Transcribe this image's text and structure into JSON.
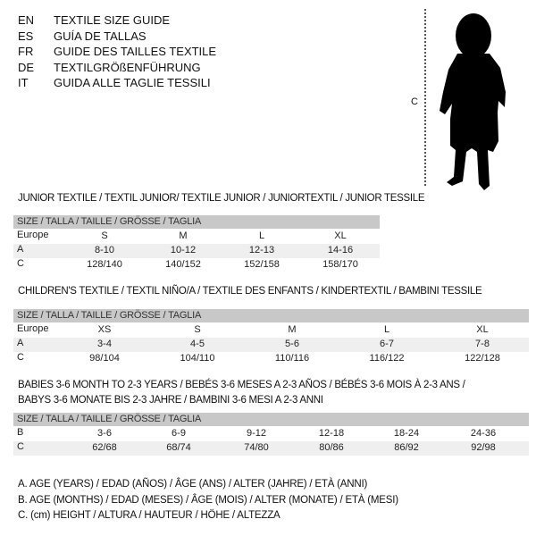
{
  "languages": [
    {
      "code": "EN",
      "title": "TEXTILE SIZE GUIDE"
    },
    {
      "code": "ES",
      "title": "GUÍA DE TALLAS"
    },
    {
      "code": "FR",
      "title": "GUIDE DES TAILLES TEXTILE"
    },
    {
      "code": "DE",
      "title": "TEXTILGRÖßENFÜHRUNG"
    },
    {
      "code": "IT",
      "title": "GUIDA ALLE TAGLIE TESSILI"
    }
  ],
  "figure": {
    "measure_label": "C",
    "icon": "child-silhouette"
  },
  "size_header": "SIZE / TALLA / TAILLE / GRÖSSE / TAGLIA",
  "junior": {
    "title": "JUNIOR TEXTILE / TEXTIL JUNIOR/ TEXTILE JUNIOR / JUNIORTEXTIL / JUNIOR TESSILE",
    "rows": [
      {
        "label": "Europe",
        "values": [
          "S",
          "M",
          "L",
          "XL"
        ]
      },
      {
        "label": "A",
        "values": [
          "8-10",
          "10-12",
          "12-13",
          "14-16"
        ]
      },
      {
        "label": "C",
        "values": [
          "128/140",
          "140/152",
          "152/158",
          "158/170"
        ]
      }
    ]
  },
  "children": {
    "title": "CHILDREN'S TEXTILE / TEXTIL NIÑO/A / TEXTILE DES ENFANTS / KINDERTEXTIL / BAMBINI TESSILE",
    "rows": [
      {
        "label": "Europe",
        "values": [
          "XS",
          "S",
          "M",
          "L",
          "XL"
        ]
      },
      {
        "label": "A",
        "values": [
          "3-4",
          "4-5",
          "5-6",
          "6-7",
          "7-8"
        ]
      },
      {
        "label": "C",
        "values": [
          "98/104",
          "104/110",
          "110/116",
          "116/122",
          "122/128"
        ]
      }
    ]
  },
  "babies": {
    "title_line1": "BABIES 3-6 MONTH TO 2-3 YEARS / BEBÉS 3-6 MESES A 2-3 AÑOS / BÉBÉS 3-6 MOIS À 2-3 ANS /",
    "title_line2": "BABYS 3-6 MONATE BIS 2-3 JAHRE / BAMBINI 3-6 MESI A 2-3 ANNI",
    "rows": [
      {
        "label": "B",
        "values": [
          "3-6",
          "6-9",
          "9-12",
          "12-18",
          "18-24",
          "24-36"
        ]
      },
      {
        "label": "C",
        "values": [
          "62/68",
          "68/74",
          "74/80",
          "80/86",
          "86/92",
          "92/98"
        ]
      }
    ]
  },
  "legend": [
    "A. AGE (YEARS) / EDAD (AÑOS) / ÂGE (ANS) / ALTER (JAHRE) / ETÀ (ANNI)",
    "B. AGE (MONTHS) / EDAD (MESES) / ÂGE (MOIS) / ALTER (MONATE) / ETÀ (MESI)",
    "C. (cm) HEIGHT / ALTURA / HAUTEUR / HÖHE / ALTEZZA"
  ]
}
